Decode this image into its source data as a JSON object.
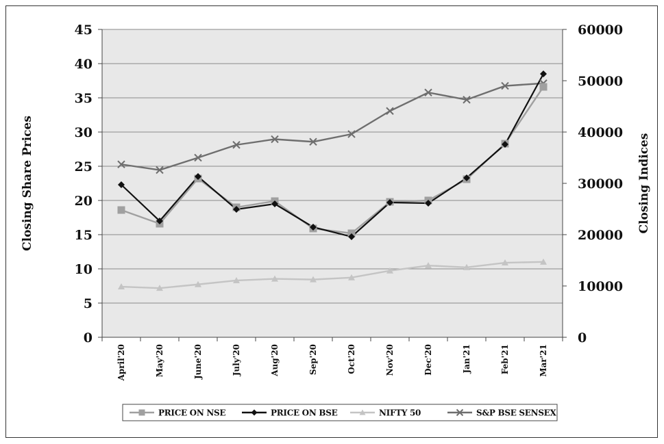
{
  "chart_data": {
    "type": "line",
    "title": "",
    "categories": [
      "April'20",
      "May'20",
      "June'20",
      "July'20",
      "Aug'20",
      "Sep'20",
      "Oct'20",
      "Nov'20",
      "Dec'20",
      "Jan'21",
      "Feb'21",
      "Mar'21"
    ],
    "y_left": {
      "label": "Closing Share Prices",
      "min": 0,
      "max": 45,
      "ticks": [
        0,
        5,
        10,
        15,
        20,
        25,
        30,
        35,
        40,
        45
      ]
    },
    "y_right": {
      "label": "Closing Indices",
      "min": 0,
      "max": 60000,
      "ticks": [
        0,
        10000,
        20000,
        30000,
        40000,
        50000,
        60000
      ]
    },
    "grid": true,
    "legend_position": "bottom",
    "series": [
      {
        "name": "PRICE ON NSE",
        "axis": "left",
        "color": "#a0a0a0",
        "marker": "square",
        "values": [
          18.6,
          16.6,
          23.2,
          19.0,
          19.9,
          15.9,
          15.2,
          19.8,
          20.0,
          23.1,
          28.3,
          36.6
        ]
      },
      {
        "name": "PRICE ON BSE",
        "axis": "left",
        "color": "#111111",
        "marker": "diamond",
        "values": [
          22.3,
          17.0,
          23.5,
          18.7,
          19.5,
          16.1,
          14.7,
          19.7,
          19.6,
          23.3,
          28.2,
          38.5
        ]
      },
      {
        "name": "NIFTY 50",
        "axis": "right",
        "color": "#c4c4c4",
        "marker": "triangle",
        "values": [
          9860,
          9580,
          10300,
          11070,
          11390,
          11250,
          11640,
          12970,
          13980,
          13630,
          14530,
          14690
        ]
      },
      {
        "name": "S&P BSE SENSEX",
        "axis": "right",
        "color": "#6e6e6e",
        "marker": "x",
        "values": [
          33700,
          32600,
          35000,
          37500,
          38600,
          38100,
          39600,
          44100,
          47700,
          46300,
          49000,
          49500
        ]
      }
    ]
  }
}
